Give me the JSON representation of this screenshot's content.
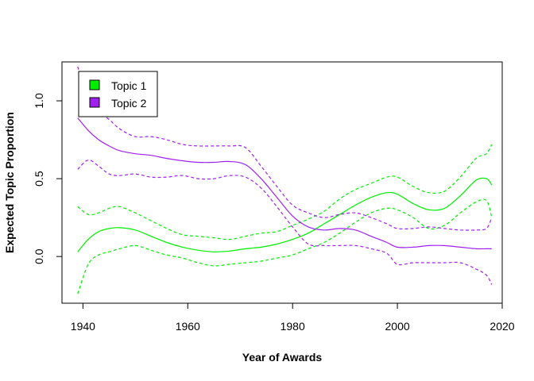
{
  "chart_data": {
    "type": "line",
    "title": "",
    "xlabel": "Year of Awards",
    "ylabel": "Expected Topic Proportion",
    "xlim": [
      1936,
      2020
    ],
    "ylim": [
      -0.3,
      1.25
    ],
    "xticks": [
      1940,
      1960,
      1980,
      2000,
      2020
    ],
    "yticks": [
      0.0,
      0.5,
      1.0
    ],
    "xtick_labels": [
      "1940",
      "1960",
      "1980",
      "2000",
      "2020"
    ],
    "ytick_labels": [
      "0.0",
      "0.5",
      "1.0"
    ],
    "legend_position": "top-left",
    "grid": false,
    "x": [
      1939,
      1941,
      1943,
      1945,
      1947,
      1950,
      1953,
      1956,
      1959,
      1962,
      1965,
      1968,
      1971,
      1974,
      1977,
      1980,
      1983,
      1986,
      1989,
      1992,
      1995,
      1998,
      2000,
      2003,
      2006,
      2009,
      2012,
      2015,
      2017,
      2018
    ],
    "series": [
      {
        "name": "Topic 1",
        "color": "#00ee00",
        "values": [
          0.03,
          0.11,
          0.16,
          0.18,
          0.185,
          0.17,
          0.13,
          0.09,
          0.06,
          0.04,
          0.03,
          0.035,
          0.05,
          0.06,
          0.08,
          0.11,
          0.15,
          0.21,
          0.27,
          0.33,
          0.38,
          0.41,
          0.4,
          0.34,
          0.3,
          0.31,
          0.39,
          0.49,
          0.5,
          0.46
        ],
        "lower": [
          -0.24,
          -0.05,
          0.01,
          0.03,
          0.05,
          0.07,
          0.04,
          0.01,
          -0.01,
          -0.04,
          -0.06,
          -0.05,
          -0.04,
          -0.03,
          -0.01,
          0.01,
          0.05,
          0.09,
          0.15,
          0.22,
          0.28,
          0.31,
          0.3,
          0.25,
          0.18,
          0.2,
          0.28,
          0.35,
          0.36,
          0.25
        ],
        "upper": [
          0.32,
          0.27,
          0.28,
          0.31,
          0.32,
          0.28,
          0.23,
          0.18,
          0.14,
          0.13,
          0.12,
          0.11,
          0.13,
          0.15,
          0.16,
          0.2,
          0.24,
          0.29,
          0.37,
          0.43,
          0.47,
          0.51,
          0.51,
          0.45,
          0.41,
          0.42,
          0.51,
          0.63,
          0.66,
          0.72
        ]
      },
      {
        "name": "Topic 2",
        "color": "#a020f0",
        "values": [
          0.89,
          0.81,
          0.75,
          0.71,
          0.68,
          0.66,
          0.65,
          0.63,
          0.615,
          0.605,
          0.605,
          0.61,
          0.59,
          0.5,
          0.38,
          0.26,
          0.19,
          0.17,
          0.18,
          0.17,
          0.13,
          0.09,
          0.06,
          0.06,
          0.07,
          0.07,
          0.06,
          0.05,
          0.05,
          0.05
        ],
        "lower": [
          0.56,
          0.62,
          0.58,
          0.53,
          0.52,
          0.53,
          0.51,
          0.51,
          0.52,
          0.5,
          0.5,
          0.52,
          0.51,
          0.44,
          0.32,
          0.19,
          0.08,
          0.07,
          0.07,
          0.07,
          0.05,
          0.02,
          -0.05,
          -0.04,
          -0.04,
          -0.04,
          -0.04,
          -0.08,
          -0.12,
          -0.18
        ],
        "upper": [
          1.22,
          1.0,
          0.93,
          0.88,
          0.82,
          0.77,
          0.77,
          0.75,
          0.72,
          0.71,
          0.71,
          0.71,
          0.7,
          0.58,
          0.45,
          0.33,
          0.28,
          0.25,
          0.27,
          0.28,
          0.25,
          0.21,
          0.18,
          0.18,
          0.19,
          0.18,
          0.17,
          0.17,
          0.18,
          0.25
        ]
      }
    ]
  }
}
